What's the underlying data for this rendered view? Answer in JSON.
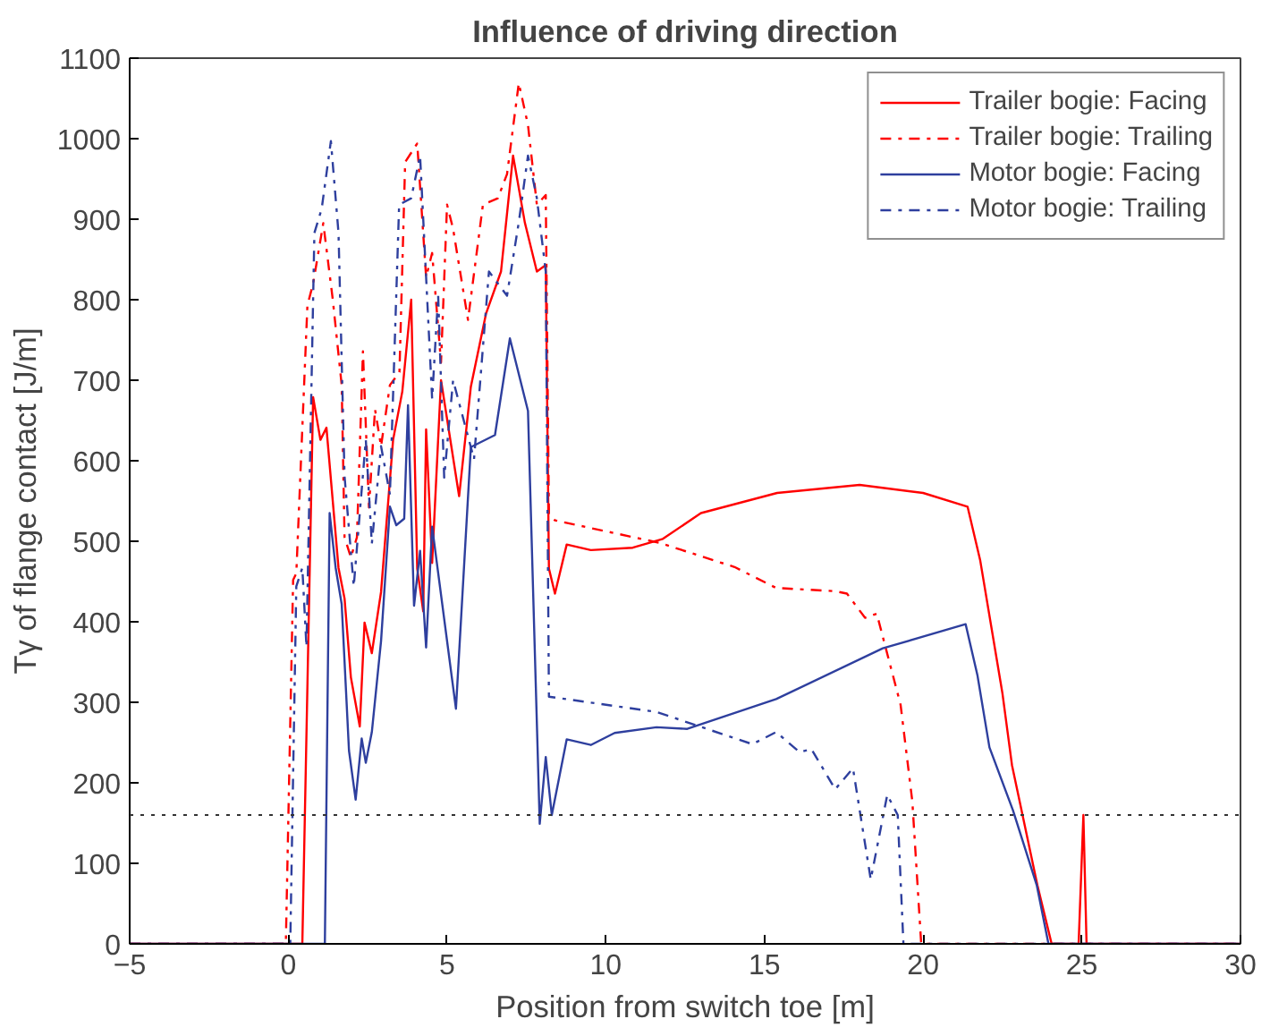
{
  "chart_data": {
    "type": "line",
    "title": "Influence of driving direction",
    "xlabel": "Position from switch toe [m]",
    "ylabel": "Tγ of flange contact [J/m]",
    "xlim": [
      -5,
      30
    ],
    "xticks": [
      -5,
      0,
      5,
      10,
      15,
      20,
      25,
      30
    ],
    "ylim": [
      0,
      1100
    ],
    "yticks": [
      0,
      100,
      200,
      300,
      400,
      500,
      600,
      700,
      800,
      900,
      1000,
      1100
    ],
    "grid": false,
    "legend": "top right",
    "marker": "none",
    "ref_lines": [
      {
        "axis": "y",
        "value": 160,
        "color": "#333333",
        "line_style": "dotted"
      }
    ],
    "series": [
      {
        "name": "Trailer bogie: Facing",
        "color": "#ff0000",
        "line_style": "solid",
        "x": [
          -5,
          0.44,
          0.78,
          1.01,
          1.2,
          1.58,
          1.77,
          1.97,
          2.25,
          2.4,
          2.63,
          2.92,
          3.3,
          3.59,
          3.87,
          4.06,
          4.25,
          4.34,
          4.53,
          4.81,
          5.38,
          5.75,
          6.23,
          6.7,
          7.08,
          7.45,
          7.83,
          8.11,
          8.21,
          8.4,
          8.77,
          9.53,
          10.85,
          11.8,
          13,
          15.4,
          18,
          20,
          21.4,
          21.8,
          22.5,
          22.8,
          23.6,
          24.05,
          24.9,
          25.05,
          25.15,
          30
        ],
        "values": [
          0,
          0,
          679,
          626,
          641,
          467,
          429,
          331,
          270,
          399,
          361,
          437,
          626,
          686,
          800,
          466,
          413,
          639,
          473,
          700,
          556,
          692,
          783,
          835,
          979,
          896,
          835,
          843,
          466,
          435,
          496,
          489,
          492,
          503,
          535,
          560,
          570,
          560,
          543,
          476,
          311,
          222,
          73,
          0,
          0,
          160,
          0,
          0
        ]
      },
      {
        "name": "Trailer bogie: Trailing",
        "color": "#ff0000",
        "line_style": "dashdot",
        "x": [
          -5,
          -0.08,
          0.15,
          0.25,
          0.6,
          0.78,
          1.1,
          1.4,
          1.68,
          1.77,
          1.97,
          2.16,
          2.35,
          2.54,
          2.73,
          2.92,
          3.2,
          3.5,
          3.68,
          4.06,
          4.34,
          4.53,
          4.81,
          5.0,
          5.19,
          5.66,
          6.13,
          6.6,
          6.89,
          7.26,
          7.55,
          7.83,
          8.11,
          8.21,
          8.4,
          11.7,
          14.06,
          15.37,
          17.23,
          17.6,
          18.17,
          18.54,
          19.29,
          19.66,
          19.94,
          30
        ],
        "values": [
          0,
          0,
          452,
          460,
          793,
          820,
          895,
          800,
          694,
          505,
          480,
          505,
          736,
          542,
          664,
          618,
          694,
          710,
          971,
          994,
          828,
          858,
          722,
          918,
          888,
          775,
          918,
          926,
          956,
          1069,
          1017,
          918,
          930,
          534,
          526,
          498,
          468,
          442,
          438,
          435,
          405,
          410,
          297,
          177,
          0,
          0
        ]
      },
      {
        "name": "Motor bogie: Facing",
        "color": "#2e3f9e",
        "line_style": "solid",
        "x": [
          -5,
          1.15,
          1.3,
          1.49,
          1.68,
          1.91,
          2.12,
          2.31,
          2.44,
          2.63,
          2.92,
          3.2,
          3.4,
          3.65,
          3.77,
          3.96,
          4.15,
          4.34,
          4.53,
          5.28,
          5.75,
          6.51,
          6.98,
          7.55,
          7.92,
          8.11,
          8.3,
          8.77,
          9.53,
          10.28,
          11.6,
          12.57,
          15.37,
          18.73,
          21.34,
          21.71,
          22.09,
          22.83,
          23.58,
          23.95,
          30
        ],
        "values": [
          0,
          0,
          535,
          467,
          422,
          240,
          179,
          255,
          225,
          263,
          376,
          543,
          520,
          528,
          669,
          420,
          488,
          368,
          518,
          292,
          617,
          632,
          752,
          662,
          149,
          232,
          160,
          254,
          247,
          262,
          269,
          267,
          304,
          367,
          397,
          334,
          244,
          166,
          73,
          0,
          0
        ]
      },
      {
        "name": "Motor bogie: Trailing",
        "color": "#2e3f9e",
        "line_style": "dashdot",
        "x": [
          -5,
          0.06,
          0.25,
          0.44,
          0.57,
          0.82,
          1.05,
          1.34,
          1.58,
          1.77,
          2.06,
          2.44,
          2.63,
          2.92,
          3.2,
          3.49,
          3.87,
          4.15,
          4.34,
          4.53,
          4.72,
          4.91,
          5.19,
          5.85,
          6.32,
          6.89,
          7.26,
          7.55,
          7.83,
          8.11,
          8.21,
          11.6,
          14.62,
          15.37,
          16.11,
          16.48,
          17.23,
          17.79,
          18.35,
          18.87,
          19.2,
          19.38,
          30
        ],
        "values": [
          0,
          0,
          444,
          467,
          369,
          883,
          913,
          997,
          883,
          581,
          444,
          626,
          497,
          618,
          558,
          918,
          926,
          979,
          828,
          677,
          805,
          579,
          700,
          602,
          835,
          805,
          896,
          979,
          926,
          835,
          307,
          288,
          248,
          263,
          238,
          242,
          192,
          218,
          80,
          185,
          160,
          0,
          0
        ]
      }
    ]
  }
}
